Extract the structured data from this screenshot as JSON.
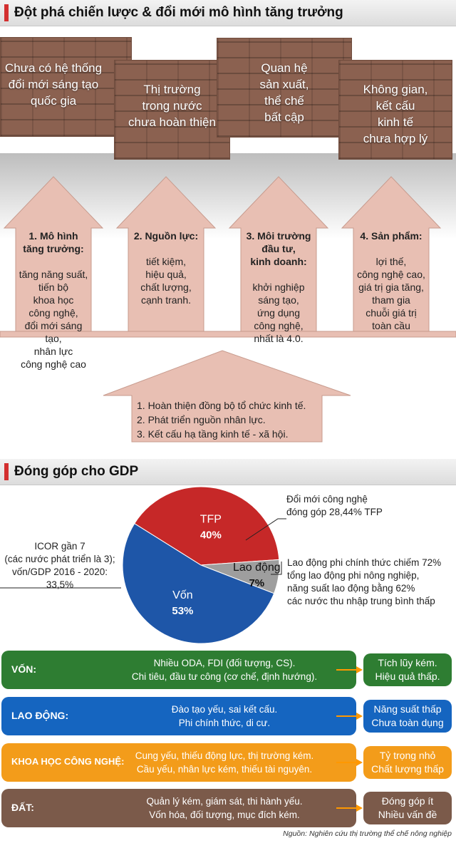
{
  "section1": {
    "title": "Đột phá chiến lược & đổi mới mô hình tăng trưởng"
  },
  "bricks": [
    {
      "lines": [
        "Chưa có hệ thống",
        "đổi mới sáng tạo",
        "quốc gia"
      ]
    },
    {
      "lines": [
        "Thị trường",
        "trong nước",
        "chưa hoàn thiện"
      ]
    },
    {
      "lines": [
        "Quan hệ",
        "sản xuất,",
        "thể chế",
        "bất cập"
      ]
    },
    {
      "lines": [
        "Không gian,",
        "kết cấu",
        "kinh tế",
        "chưa hợp lý"
      ]
    }
  ],
  "arrows": [
    {
      "title": "1. Mô hình\ntăng trưởng:",
      "body": "tăng năng suất,\ntiến bộ\nkhoa học\ncông nghệ,\nđổi mới sáng tạo,\nnhân lực\ncông nghệ cao"
    },
    {
      "title": "2. Nguồn lực:",
      "body": "tiết kiệm,\nhiệu quả,\nchất lượng,\ncạnh tranh."
    },
    {
      "title": "3. Môi trường\nđầu tư,\nkinh doanh:",
      "body": "khởi nghiệp\nsáng tạo,\nứng dụng\ncông nghệ,\nnhất là 4.0."
    },
    {
      "title": "4. Sản phẩm:",
      "body": "lợi thế,\ncông nghệ cao,\ngiá trị gia tăng,\ntham gia\nchuỗi giá trị\ntoàn cầu"
    }
  ],
  "bottom_arrow": {
    "items": [
      "1. Hoàn thiện đồng bộ tổ chức kinh tế.",
      "2. Phát triển nguồn nhân lực.",
      "3. Kết cấu hạ tầng kinh tế - xã hội."
    ]
  },
  "section2": {
    "title": "Đóng góp cho GDP"
  },
  "chart_data": {
    "type": "pie",
    "slices": [
      {
        "label": "TFP",
        "value": 40,
        "value_label": "40%",
        "color": "#c62828"
      },
      {
        "label": "Lao động",
        "value": 7,
        "value_label": "7%",
        "color": "#9e9e9e"
      },
      {
        "label": "Vốn",
        "value": 53,
        "value_label": "53%",
        "color": "#1e56a8"
      }
    ]
  },
  "annotations": {
    "tfp_note": "Đổi mới công nghệ\nđóng góp 28,44% TFP",
    "icor_note": "ICOR gần 7\n(các nước phát triển là 3);\nvốn/GDP 2016 - 2020:\n33,5%",
    "labor_note": "Lao động phi chính thức chiếm 72%\ntổng lao động phi nông nghiệp,\nnăng suất lao động bằng 62%\ncác nước thu nhập trung bình thấp"
  },
  "rows": [
    {
      "label": "VỐN:",
      "desc": "Nhiều ODA, FDI (đối tượng, CS).\nChi tiêu, đầu tư công (cơ chế, định hướng).",
      "result": "Tích lũy kém.\nHiệu quả thấp.",
      "color": "#2e7d32"
    },
    {
      "label": "LAO ĐỘNG:",
      "desc": "Đào tạo yếu, sai kết cấu.\nPhi chính thức, di cư.",
      "result": "Năng suất thấp\nChưa toàn dụng",
      "color": "#1565c0"
    },
    {
      "label": "KHOA HỌC CÔNG NGHỆ:",
      "desc": "Cung yếu, thiếu động lực, thị trường kém.\nCầu yếu, nhân lực kém, thiếu tài nguyên.",
      "result": "Tỷ trọng nhỏ\nChất lượng thấp",
      "color": "#f39c1a"
    },
    {
      "label": "ĐẤT:",
      "desc": "Quản lý kém, giám sát, thi hành yếu.\nVốn hóa, đối tượng, mục đích kém.",
      "result": "Đóng góp ít\nNhiều vấn đề",
      "color": "#7b5a4a"
    }
  ],
  "source": "Nguồn: Nghiên cứu thị trường thể chế nông nghiệp"
}
